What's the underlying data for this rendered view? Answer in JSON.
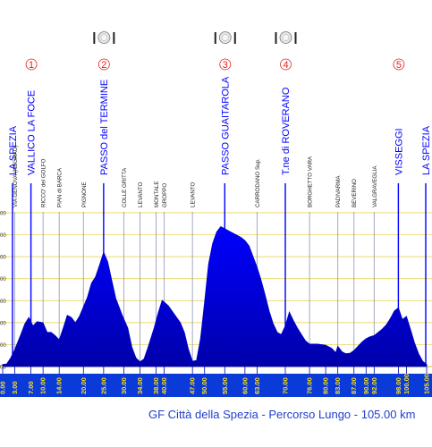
{
  "chart_data": {
    "type": "area",
    "title": "GF Città della Spezia - Percorso Lungo - 105.00 km",
    "xlabel": "",
    "ylabel": "",
    "xlim": [
      0,
      105
    ],
    "ylim": [
      0,
      720
    ],
    "grid": true,
    "colors": {
      "area": "#0000ff",
      "area_dark": "#0000aa",
      "axis_band": "#0a3ad8",
      "axis_text": "#ffe21a",
      "gridline": "#e7cd3c",
      "place_line": "#0000ff",
      "sub_line": "#9aa0b8",
      "climb_number": "#e02020",
      "footer_text": "#1f3fcc"
    },
    "x_ticks": [
      "0.00",
      "3.00",
      "7.00",
      "10.00",
      "14.00",
      "20.00",
      "25.00",
      "30.00",
      "34.00",
      "38.00",
      "40.00",
      "47.00",
      "50.00",
      "55.00",
      "60.00",
      "63.00",
      "70.00",
      "76.00",
      "80.00",
      "83.00",
      "87.00",
      "90.00",
      "92.00",
      "98.00",
      "100.00",
      "105.00"
    ],
    "y_tick_labels": [
      "00",
      "00",
      "00",
      "00",
      "00",
      "00",
      "00",
      "00"
    ],
    "profile": [
      {
        "x": 0,
        "y": 10
      },
      {
        "x": 1,
        "y": 12
      },
      {
        "x": 2,
        "y": 40
      },
      {
        "x": 3,
        "y": 80
      },
      {
        "x": 4.5,
        "y": 150
      },
      {
        "x": 5.5,
        "y": 200
      },
      {
        "x": 6.5,
        "y": 230
      },
      {
        "x": 7.5,
        "y": 190
      },
      {
        "x": 8.5,
        "y": 210
      },
      {
        "x": 10,
        "y": 205
      },
      {
        "x": 11,
        "y": 160
      },
      {
        "x": 12,
        "y": 160
      },
      {
        "x": 13,
        "y": 145
      },
      {
        "x": 14,
        "y": 125
      },
      {
        "x": 15,
        "y": 180
      },
      {
        "x": 16,
        "y": 240
      },
      {
        "x": 17,
        "y": 230
      },
      {
        "x": 18,
        "y": 205
      },
      {
        "x": 19,
        "y": 235
      },
      {
        "x": 20,
        "y": 280
      },
      {
        "x": 21,
        "y": 325
      },
      {
        "x": 22,
        "y": 390
      },
      {
        "x": 23,
        "y": 420
      },
      {
        "x": 24,
        "y": 475
      },
      {
        "x": 25,
        "y": 535
      },
      {
        "x": 26,
        "y": 490
      },
      {
        "x": 27,
        "y": 405
      },
      {
        "x": 28,
        "y": 320
      },
      {
        "x": 29.5,
        "y": 245
      },
      {
        "x": 31,
        "y": 180
      },
      {
        "x": 32,
        "y": 90
      },
      {
        "x": 33,
        "y": 40
      },
      {
        "x": 34,
        "y": 22
      },
      {
        "x": 35,
        "y": 35
      },
      {
        "x": 36,
        "y": 90
      },
      {
        "x": 37.5,
        "y": 180
      },
      {
        "x": 38.5,
        "y": 250
      },
      {
        "x": 39.5,
        "y": 310
      },
      {
        "x": 41,
        "y": 285
      },
      {
        "x": 42.5,
        "y": 245
      },
      {
        "x": 44,
        "y": 205
      },
      {
        "x": 45,
        "y": 160
      },
      {
        "x": 46,
        "y": 80
      },
      {
        "x": 47,
        "y": 25
      },
      {
        "x": 48,
        "y": 28
      },
      {
        "x": 49,
        "y": 130
      },
      {
        "x": 50,
        "y": 300
      },
      {
        "x": 51,
        "y": 480
      },
      {
        "x": 52,
        "y": 575
      },
      {
        "x": 53,
        "y": 630
      },
      {
        "x": 54,
        "y": 655
      },
      {
        "x": 55,
        "y": 645
      },
      {
        "x": 56,
        "y": 635
      },
      {
        "x": 57,
        "y": 625
      },
      {
        "x": 58,
        "y": 615
      },
      {
        "x": 59,
        "y": 605
      },
      {
        "x": 60,
        "y": 590
      },
      {
        "x": 61,
        "y": 565
      },
      {
        "x": 62,
        "y": 515
      },
      {
        "x": 63,
        "y": 465
      },
      {
        "x": 64,
        "y": 405
      },
      {
        "x": 65,
        "y": 335
      },
      {
        "x": 66,
        "y": 260
      },
      {
        "x": 67,
        "y": 200
      },
      {
        "x": 68,
        "y": 160
      },
      {
        "x": 69,
        "y": 150
      },
      {
        "x": 70,
        "y": 190
      },
      {
        "x": 71,
        "y": 255
      },
      {
        "x": 72,
        "y": 215
      },
      {
        "x": 73,
        "y": 180
      },
      {
        "x": 74,
        "y": 150
      },
      {
        "x": 75,
        "y": 120
      },
      {
        "x": 76,
        "y": 105
      },
      {
        "x": 78,
        "y": 105
      },
      {
        "x": 80,
        "y": 100
      },
      {
        "x": 81.5,
        "y": 85
      },
      {
        "x": 82.5,
        "y": 65
      },
      {
        "x": 83,
        "y": 95
      },
      {
        "x": 84,
        "y": 70
      },
      {
        "x": 85,
        "y": 60
      },
      {
        "x": 86,
        "y": 62
      },
      {
        "x": 87,
        "y": 75
      },
      {
        "x": 88,
        "y": 95
      },
      {
        "x": 89,
        "y": 115
      },
      {
        "x": 90,
        "y": 130
      },
      {
        "x": 91,
        "y": 140
      },
      {
        "x": 92,
        "y": 145
      },
      {
        "x": 93,
        "y": 160
      },
      {
        "x": 94,
        "y": 175
      },
      {
        "x": 95,
        "y": 195
      },
      {
        "x": 96,
        "y": 225
      },
      {
        "x": 97,
        "y": 260
      },
      {
        "x": 98,
        "y": 275
      },
      {
        "x": 99,
        "y": 220
      },
      {
        "x": 100,
        "y": 235
      },
      {
        "x": 101,
        "y": 175
      },
      {
        "x": 102,
        "y": 110
      },
      {
        "x": 103,
        "y": 60
      },
      {
        "x": 104,
        "y": 25
      },
      {
        "x": 105,
        "y": 10
      }
    ],
    "places": [
      {
        "x": 0,
        "label": "LA SPEZIA",
        "major": true,
        "climb": ""
      },
      {
        "x": 3,
        "label": "VIA GENOVA (NEGRAO)",
        "major": false,
        "climb": ""
      },
      {
        "x": 7,
        "label": "VALLICO LA FOCE",
        "major": true,
        "climb": "1"
      },
      {
        "x": 10,
        "label": "RICCO' del GOLFO",
        "major": false,
        "climb": ""
      },
      {
        "x": 14,
        "label": "PIAN di BARCA",
        "major": false,
        "climb": ""
      },
      {
        "x": 20,
        "label": "PIGNONE",
        "major": false,
        "climb": ""
      },
      {
        "x": 25,
        "label": "PASSO del TERMINE",
        "major": true,
        "climb": "2"
      },
      {
        "x": 30,
        "label": "COLLE GRITTA",
        "major": false,
        "climb": ""
      },
      {
        "x": 34,
        "label": "LEVANTO",
        "major": false,
        "climb": ""
      },
      {
        "x": 38,
        "label": "MONTALE",
        "major": false,
        "climb": ""
      },
      {
        "x": 40,
        "label": "GROPPO",
        "major": false,
        "climb": ""
      },
      {
        "x": 47,
        "label": "LEVANTO",
        "major": false,
        "climb": ""
      },
      {
        "x": 55,
        "label": "PASSO GUAITAROLA",
        "major": true,
        "climb": "3"
      },
      {
        "x": 63,
        "label": "CARRODANO Sup.",
        "major": false,
        "climb": ""
      },
      {
        "x": 70,
        "label": "T.ne di ROVERANO",
        "major": true,
        "climb": "4"
      },
      {
        "x": 76,
        "label": "BORGHETTO VARA",
        "major": false,
        "climb": ""
      },
      {
        "x": 83,
        "label": "PADIVARMA",
        "major": false,
        "climb": ""
      },
      {
        "x": 87,
        "label": "BEVERINO",
        "major": false,
        "climb": ""
      },
      {
        "x": 92,
        "label": "VALGRAVEGLIA",
        "major": false,
        "climb": ""
      },
      {
        "x": 98,
        "label": "VISSEGGI",
        "major": true,
        "climb": "5"
      },
      {
        "x": 105,
        "label": "LA SPEZIA",
        "major": true,
        "climb": ""
      }
    ],
    "feed_zones": [
      {
        "x": 25,
        "icon": "fork-plate-knife-icon"
      },
      {
        "x": 55,
        "icon": "fork-plate-knife-icon"
      },
      {
        "x": 70,
        "icon": "fork-plate-knife-icon"
      }
    ]
  }
}
